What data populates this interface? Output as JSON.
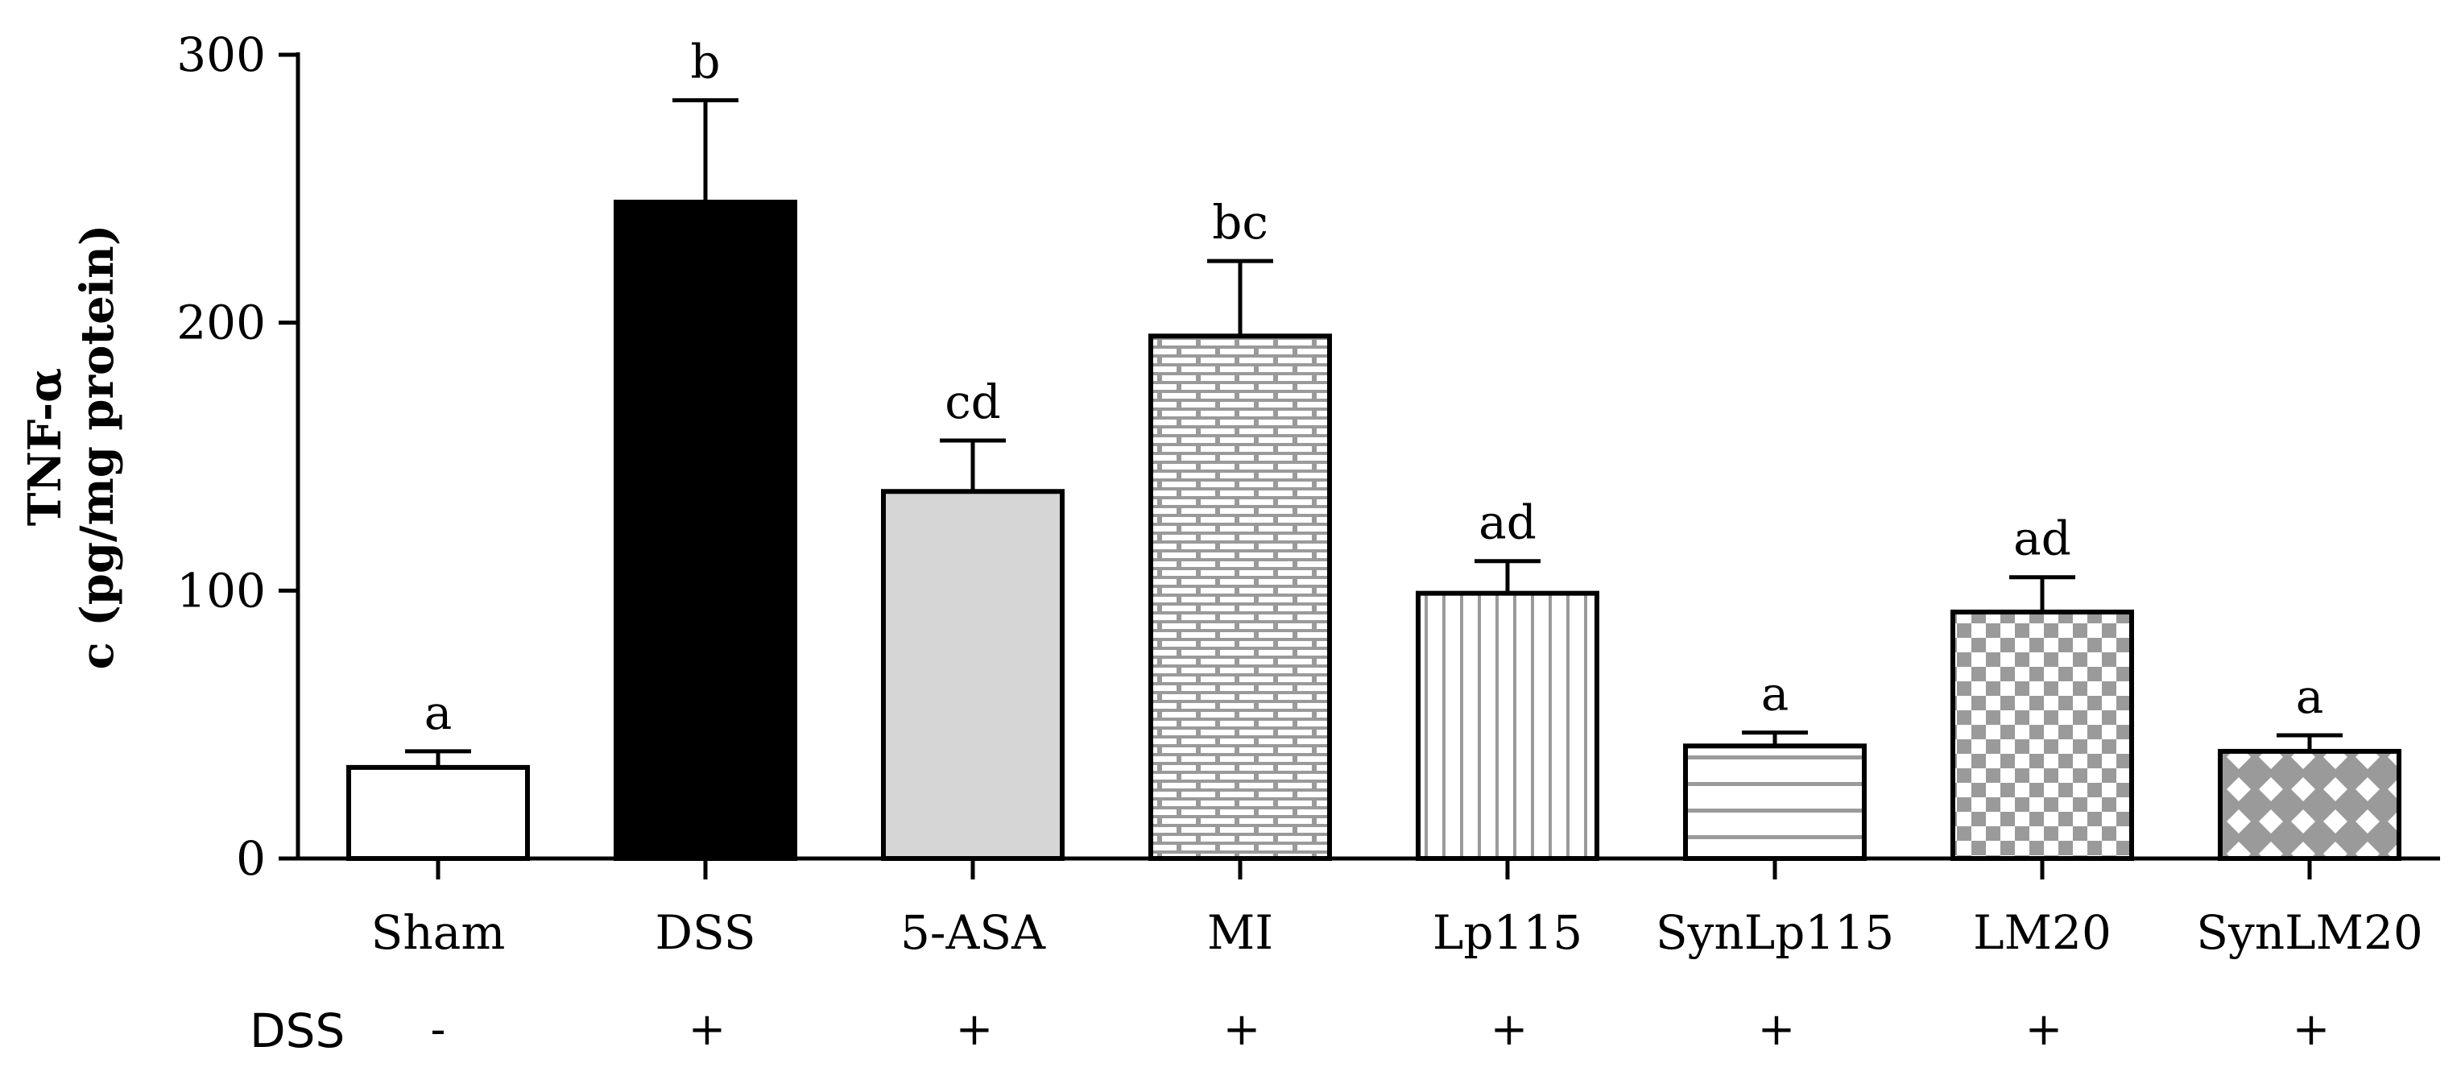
{
  "chart_data": {
    "type": "bar",
    "title": "",
    "xlabel": "",
    "ylabel_lines": [
      "TNF-α",
      "c (pg/mg protein)"
    ],
    "ylim": [
      0,
      300
    ],
    "yticks": [
      0,
      100,
      200,
      300
    ],
    "categories": [
      "Sham",
      "DSS",
      "5-ASA",
      "MI",
      "Lp115",
      "SynLp115",
      "LM20",
      "SynLM20"
    ],
    "values": [
      34,
      245,
      137,
      195,
      99,
      42,
      92,
      40
    ],
    "errors": [
      6,
      38,
      19,
      28,
      12,
      5,
      13,
      6
    ],
    "significance": [
      "a",
      "b",
      "cd",
      "bc",
      "ad",
      "a",
      "ad",
      "a"
    ],
    "patterns": [
      "white",
      "black",
      "lightgray",
      "brick",
      "vertical-lines",
      "horizontal-lines",
      "checker",
      "diamond-lattice"
    ],
    "dss_row": {
      "label": "DSS",
      "values": [
        "-",
        "+",
        "+",
        "+",
        "+",
        "+",
        "+",
        "+"
      ]
    },
    "colors": {
      "axis": "#000000",
      "bar_dark": "#000000",
      "bar_light": "#d6d6d6",
      "pattern_gray": "#9a9a9a"
    }
  }
}
